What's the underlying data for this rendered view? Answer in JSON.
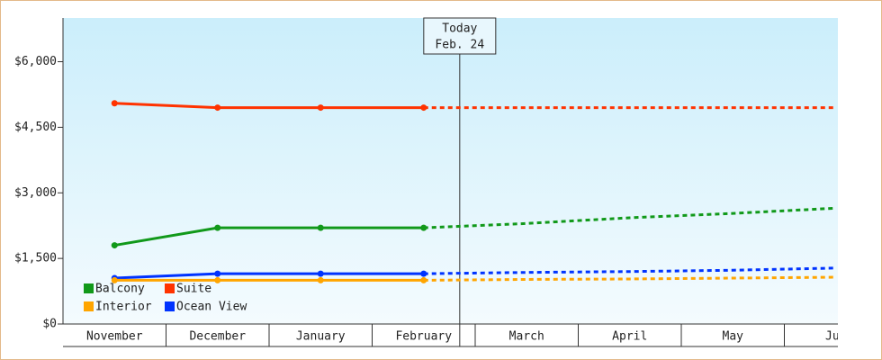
{
  "chart_data": {
    "type": "line",
    "categories": [
      "November",
      "December",
      "January",
      "February",
      "March",
      "April",
      "May",
      "Jun"
    ],
    "series": [
      {
        "name": "Suite",
        "color": "#ff3300",
        "values": [
          5050,
          4950,
          4950,
          4950,
          4950,
          4950,
          4950,
          4950
        ]
      },
      {
        "name": "Balcony",
        "color": "#11991a",
        "values": [
          1800,
          2200,
          2200,
          2200,
          2300,
          2430,
          2530,
          2650
        ]
      },
      {
        "name": "Ocean View",
        "color": "#0033ff",
        "values": [
          1050,
          1150,
          1150,
          1150,
          1180,
          1200,
          1230,
          1280
        ]
      },
      {
        "name": "Interior",
        "color": "#ffa500",
        "values": [
          1000,
          1000,
          1000,
          1000,
          1020,
          1030,
          1050,
          1070
        ]
      }
    ],
    "legend_order": [
      1,
      0,
      3,
      2
    ],
    "today": {
      "label": "Today",
      "date": "Feb. 24",
      "category_index": 3
    },
    "ylim": [
      0,
      7000
    ],
    "yticks": [
      {
        "value": 0,
        "label": "$0"
      },
      {
        "value": 1500,
        "label": "$1,500"
      },
      {
        "value": 3000,
        "label": "$3,000"
      },
      {
        "value": 4500,
        "label": "$4,500"
      },
      {
        "value": 6000,
        "label": "$6,000"
      }
    ]
  }
}
